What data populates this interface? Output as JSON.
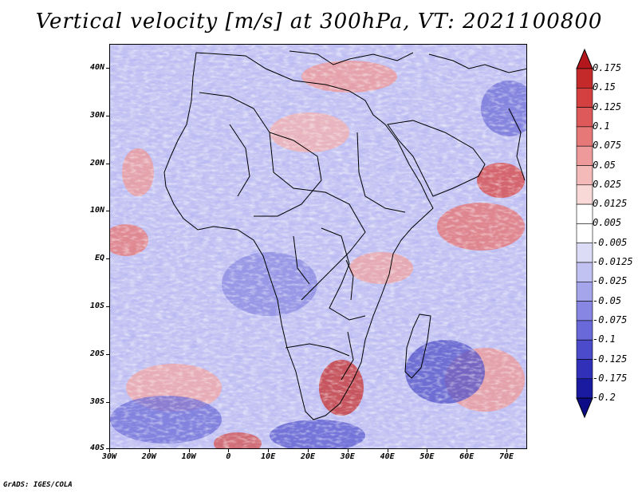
{
  "title": "Vertical velocity [m/s] at 300hPa, VT: 2021100800",
  "credit": "GrADS: IGES/COLA",
  "y_axis_labels": [
    "40N",
    "30N",
    "20N",
    "10N",
    "EQ",
    "10S",
    "20S",
    "30S",
    "40S"
  ],
  "x_axis_labels": [
    "30W",
    "20W",
    "10W",
    "0",
    "10E",
    "20E",
    "30E",
    "40E",
    "50E",
    "60E",
    "70E"
  ],
  "colorbar": {
    "labels": [
      "0.175",
      "0.15",
      "0.125",
      "0.1",
      "0.075",
      "0.05",
      "0.025",
      "0.0125",
      "0.005",
      "-0.005",
      "-0.0125",
      "-0.025",
      "-0.05",
      "-0.075",
      "-0.1",
      "-0.125",
      "-0.175",
      "-0.2"
    ],
    "colors": [
      "#b3171b",
      "#c52a2a",
      "#d43f3f",
      "#de5a5a",
      "#e67878",
      "#ee9a9a",
      "#f4baba",
      "#f9d8d8",
      "#ffffff",
      "#ffffff",
      "#dcdcf7",
      "#c2c2f2",
      "#a5a5ec",
      "#8787e3",
      "#6969d9",
      "#4b4bcb",
      "#3030b8",
      "#1a1aa0",
      "#0c0c86"
    ]
  },
  "colors": {
    "positive_fill": "#e88585",
    "negative_fill": "#7a7ae0",
    "neutral": "#ffffff",
    "coast": "#000000"
  }
}
